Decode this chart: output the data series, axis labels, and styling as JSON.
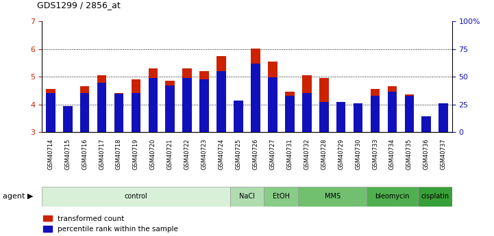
{
  "title": "GDS1299 / 2856_at",
  "samples": [
    "GSM40714",
    "GSM40715",
    "GSM40716",
    "GSM40717",
    "GSM40718",
    "GSM40719",
    "GSM40720",
    "GSM40721",
    "GSM40722",
    "GSM40723",
    "GSM40724",
    "GSM40725",
    "GSM40726",
    "GSM40727",
    "GSM40731",
    "GSM40732",
    "GSM40728",
    "GSM40729",
    "GSM40730",
    "GSM40733",
    "GSM40734",
    "GSM40735",
    "GSM40736",
    "GSM40737"
  ],
  "red_values": [
    4.55,
    3.95,
    4.65,
    5.05,
    4.4,
    4.9,
    5.3,
    4.85,
    5.3,
    5.2,
    5.75,
    4.15,
    6.02,
    5.55,
    4.45,
    5.05,
    4.95,
    3.95,
    3.8,
    4.55,
    4.65,
    4.35,
    3.55,
    3.9
  ],
  "blue_values": [
    4.4,
    3.95,
    4.42,
    4.78,
    4.38,
    4.42,
    4.95,
    4.68,
    4.95,
    4.9,
    5.2,
    4.15,
    5.48,
    4.98,
    4.32,
    4.42,
    4.08,
    4.08,
    4.05,
    4.32,
    4.45,
    4.32,
    3.58,
    4.05
  ],
  "ylim_left": [
    3,
    7
  ],
  "ylim_right": [
    0,
    100
  ],
  "yticks_left": [
    3,
    4,
    5,
    6,
    7
  ],
  "yticks_right": [
    0,
    25,
    50,
    75,
    100
  ],
  "ytick_labels_right": [
    "0",
    "25",
    "50",
    "75",
    "100%"
  ],
  "agent_groups": [
    {
      "label": "control",
      "start": 0,
      "end": 11,
      "color": "#d8efd8"
    },
    {
      "label": "NaCl",
      "start": 11,
      "end": 13,
      "color": "#b0dcb0"
    },
    {
      "label": "EtOH",
      "start": 13,
      "end": 15,
      "color": "#88cc88"
    },
    {
      "label": "MMS",
      "start": 15,
      "end": 19,
      "color": "#70c070"
    },
    {
      "label": "bleomycin",
      "start": 19,
      "end": 22,
      "color": "#50b050"
    },
    {
      "label": "cisplatin",
      "start": 22,
      "end": 24,
      "color": "#38a038"
    }
  ],
  "red_color": "#cc2200",
  "blue_color": "#1111bb",
  "bar_width": 0.55,
  "background_color": "#ffffff",
  "grid_color": "#000000",
  "ylabel_left_color": "#cc2200",
  "ylabel_right_color": "#1111bb",
  "xtick_bg_color": "#d8d8d8"
}
